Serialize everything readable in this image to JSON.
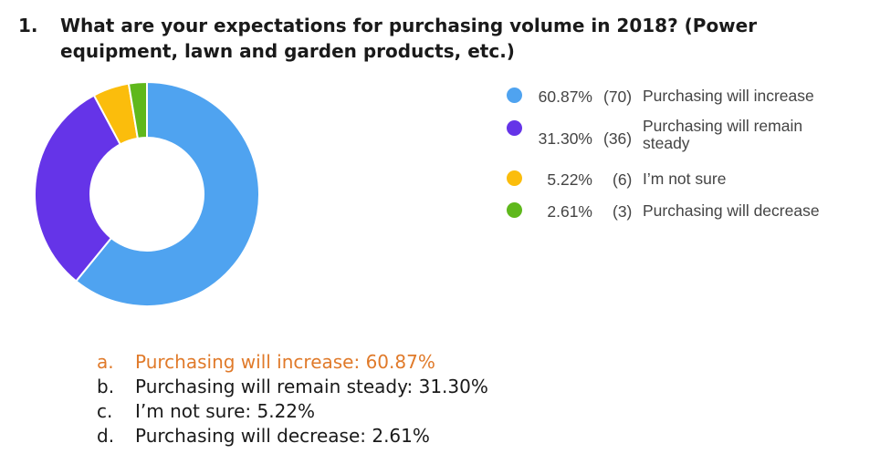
{
  "question": {
    "number": "1.",
    "text": "What are your expectations for purchasing volume in 2018? (Power equipment, lawn and garden products, etc.)"
  },
  "chart_data": {
    "type": "pie",
    "subtype": "donut",
    "title": "",
    "slices": [
      {
        "label": "Purchasing will increase",
        "percent": 60.87,
        "percent_text": "60.87%",
        "count": 70,
        "count_text": "(70)",
        "color": "#4fa3f0"
      },
      {
        "label": "Purchasing will remain steady",
        "percent": 31.3,
        "percent_text": "31.30%",
        "count": 36,
        "count_text": "(36)",
        "color": "#6534e8"
      },
      {
        "label": "I’m not sure",
        "percent": 5.22,
        "percent_text": "5.22%",
        "count": 6,
        "count_text": "(6)",
        "color": "#fbbd0c"
      },
      {
        "label": "Purchasing will decrease",
        "percent": 2.61,
        "percent_text": "2.61%",
        "count": 3,
        "count_text": "(3)",
        "color": "#5fb81c"
      }
    ],
    "legend_position": "right"
  },
  "legend": {
    "steady_label_line1": "Purchasing will remain",
    "steady_label_line2": "steady"
  },
  "answers": [
    {
      "letter": "a.",
      "text": "Purchasing will increase: 60.87%",
      "highlight_color": "#e07a2a"
    },
    {
      "letter": "b.",
      "text": "Purchasing will remain steady: 31.30%"
    },
    {
      "letter": "c.",
      "text": "I’m not sure: 5.22%"
    },
    {
      "letter": "d.",
      "text": "Purchasing will decrease: 2.61%"
    }
  ]
}
